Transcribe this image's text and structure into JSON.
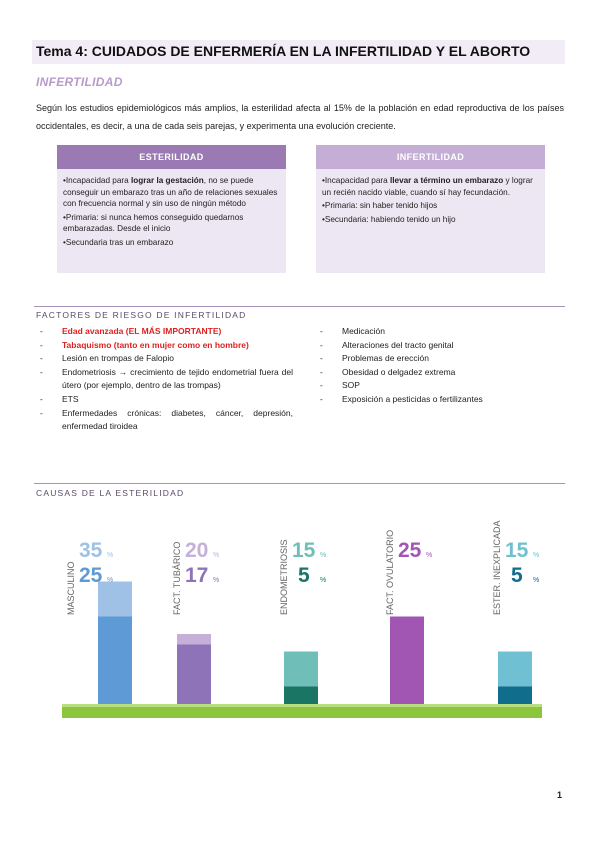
{
  "title": "Tema 4: CUIDADOS DE ENFERMERÍA EN LA INFERTILIDAD Y EL ABORTO",
  "section_heading": "INFERTILIDAD",
  "intro": "Según los estudios epidemiológicos más amplios, la esterilidad afecta al 15% de la población en edad reproductiva de los países occidentales, es decir, a una de cada seis parejas, y experimenta una evolución creciente.",
  "boxes": [
    {
      "title": "ESTERILIDAD",
      "header_color": "#9b7ab3",
      "items": [
        {
          "pre": "•Incapacidad para ",
          "bold": "lograr la gestación",
          "post": ", no se puede conseguir un embarazo tras un año de relaciones sexuales con frecuencia normal y sin uso de ningún método"
        },
        {
          "pre": "•Primaria: si nunca hemos conseguido quedarnos embarazadas. Desde el inicio",
          "bold": "",
          "post": ""
        },
        {
          "pre": "•Secundaria tras un embarazo",
          "bold": "",
          "post": ""
        }
      ]
    },
    {
      "title": "INFERTILIDAD",
      "header_color": "#c4aed6",
      "items": [
        {
          "pre": "•Incapacidad para ",
          "bold": "llevar a término un embarazo",
          "post": " y lograr un recién nacido viable, cuando sí hay fecundación."
        },
        {
          "pre": "•Primaria: sin haber tenido hijos",
          "bold": "",
          "post": ""
        },
        {
          "pre": "•Secundaria: habiendo tenido un hijo",
          "bold": "",
          "post": ""
        }
      ]
    }
  ],
  "risk_factors": {
    "heading": "FACTORES DE RIESGO DE INFERTILIDAD",
    "dash": "-",
    "left": [
      {
        "text": "Edad avanzada (EL MÁS IMPORTANTE)",
        "highlight": true
      },
      {
        "text": "Tabaquismo (tanto en mujer como en hombre)",
        "highlight": true
      },
      {
        "text": "Lesión en trompas de Falopio",
        "highlight": false
      },
      {
        "text": "Endometriosis → crecimiento de tejido endometrial fuera del útero (por ejemplo, dentro de las trompas)",
        "highlight": false
      },
      {
        "text": "ETS",
        "highlight": false
      },
      {
        "text": "Enfermedades crónicas: diabetes, cáncer, depresión, enfermedad tiroidea",
        "highlight": false
      }
    ],
    "right": [
      {
        "text": "Medicación",
        "highlight": false
      },
      {
        "text": "Alteraciones del tracto genital",
        "highlight": false
      },
      {
        "text": "Problemas de erección",
        "highlight": false
      },
      {
        "text": "Obesidad o delgadez extrema",
        "highlight": false
      },
      {
        "text": "SOP",
        "highlight": false
      },
      {
        "text": "Exposición a pesticidas o fertilizantes",
        "highlight": false
      }
    ]
  },
  "causes_heading": "CAUSAS DE LA ESTERILIDAD",
  "chart_data": {
    "type": "bar",
    "categories": [
      "MASCULINO",
      "FACT. TUBÁRICO",
      "ENDOMETRIOSIS",
      "FACT. OVULATORIO",
      "ESTER. INEXPLICADA"
    ],
    "series": [
      {
        "values": [
          35,
          20,
          15,
          25,
          15
        ],
        "colors": [
          "#9fc1e5",
          "#c4b0d8",
          "#6fbfb8",
          "#a256b3",
          "#6fc0d2"
        ]
      },
      {
        "values": [
          25,
          17,
          5,
          null,
          5
        ],
        "colors": [
          "#5e9bd6",
          "#8f73b8",
          "#1a7564",
          null,
          "#116d8c"
        ]
      }
    ],
    "unit": "%",
    "ylim": [
      0,
      40
    ],
    "ground_color": "#8cc63f"
  },
  "page_number": "1"
}
